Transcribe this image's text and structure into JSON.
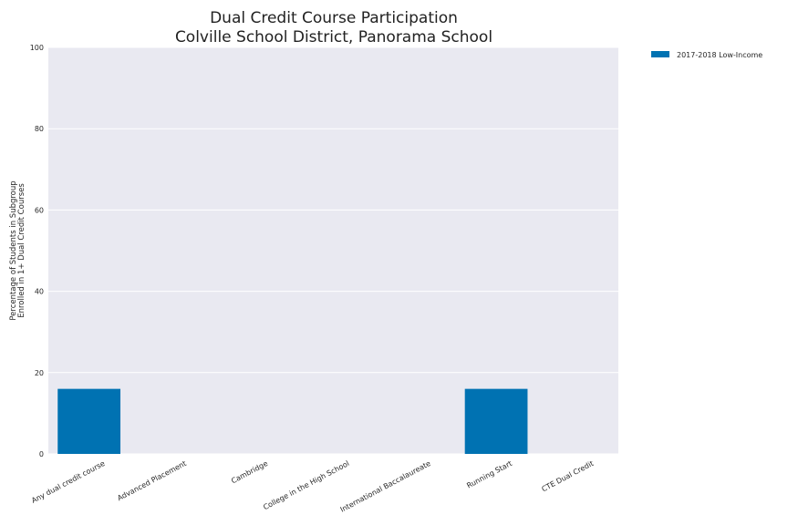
{
  "chart_data": {
    "type": "bar",
    "title": [
      "Dual Credit Course Participation",
      "Colville School District, Panorama School"
    ],
    "ylabel": [
      "Percentage of Students in Subgroup",
      "Enrolled in 1+ Dual Credit Courses"
    ],
    "xlabel": "",
    "categories": [
      "Any dual credit course",
      "Advanced Placement",
      "Cambridge",
      "College in the High School",
      "International Baccalaureate",
      "Running Start",
      "CTE Dual Credit"
    ],
    "series": [
      {
        "name": "2017-2018 Low-Income",
        "color": "#0072b2",
        "values": [
          16,
          0,
          0,
          0,
          0,
          16,
          0
        ]
      }
    ],
    "ylim": [
      0,
      100
    ],
    "yticks": [
      0,
      20,
      40,
      60,
      80,
      100
    ],
    "grid": true,
    "legend_position": "outside-top-right",
    "plot_background": "#e9e9f1"
  }
}
